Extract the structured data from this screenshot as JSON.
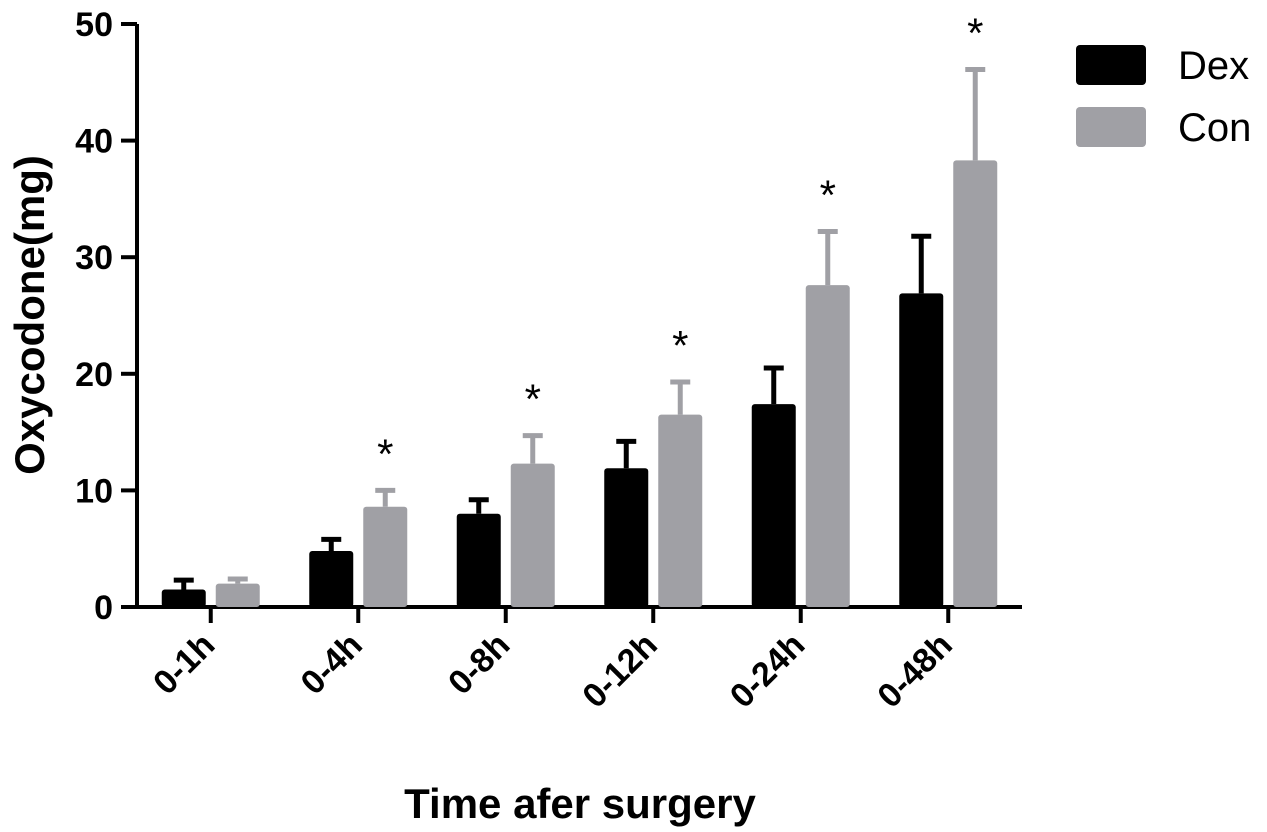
{
  "chart_data": {
    "type": "bar",
    "xlabel": "Time afer surgery",
    "ylabel": "Oxycodone(mg)",
    "ylim": [
      0,
      50
    ],
    "yticks": [
      0,
      10,
      20,
      30,
      40,
      50
    ],
    "categories": [
      "0-1h",
      "0-4h",
      "0-8h",
      "0-12h",
      "0-24h",
      "0-48h"
    ],
    "series": [
      {
        "name": "Dex",
        "color": "#000000",
        "values": [
          1.5,
          4.8,
          8.0,
          11.9,
          17.4,
          26.9
        ],
        "errors": [
          0.8,
          1.0,
          1.2,
          2.3,
          3.1,
          4.9
        ]
      },
      {
        "name": "Con",
        "color": "#a0a0a5",
        "values": [
          2.0,
          8.6,
          12.3,
          16.5,
          27.6,
          38.3
        ],
        "errors": [
          0.4,
          1.4,
          2.4,
          2.8,
          4.6,
          7.8
        ]
      }
    ],
    "significance": [
      "",
      "*",
      "*",
      "*",
      "*",
      "*"
    ],
    "legend": "top-right",
    "grid": false
  }
}
